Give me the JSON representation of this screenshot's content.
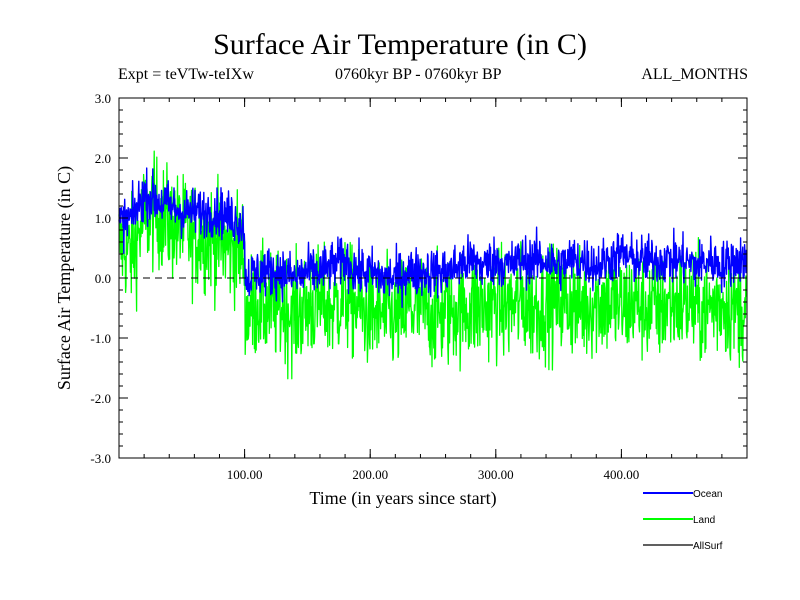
{
  "header": {
    "title": "Surface Air Temperature (in C)",
    "expt_label": "Expt = teVTw-teIXw",
    "period_label": "0760kyr BP - 0760kyr BP",
    "months_label": "ALL_MONTHS"
  },
  "chart_data": {
    "type": "line",
    "title": "Surface Air Temperature (in C)",
    "xlabel": "Time (in years since start)",
    "ylabel": "Surface Air Temperature (in C)",
    "xlim": [
      0,
      500
    ],
    "ylim": [
      -3.0,
      3.0
    ],
    "x_ticks": [
      100,
      200,
      300,
      400
    ],
    "x_tick_labels": [
      "100.00",
      "200.00",
      "300.00",
      "400.00"
    ],
    "y_ticks": [
      3.0,
      2.0,
      1.0,
      0.0,
      -1.0,
      -2.0,
      -3.0
    ],
    "y_tick_labels": [
      "3.0",
      "2.0",
      "1.0",
      "0.0",
      "-1.0",
      "-2.0",
      "-3.0"
    ],
    "zero_line": true,
    "legend_position": "bottom-right",
    "series": [
      {
        "name": "Land",
        "color": "#00ff00",
        "x": [
          0,
          10,
          20,
          30,
          40,
          50,
          60,
          70,
          80,
          90,
          99,
          101,
          110,
          120,
          130,
          140,
          150,
          160,
          170,
          180,
          190,
          200,
          210,
          220,
          230,
          240,
          250,
          260,
          270,
          280,
          290,
          300,
          310,
          320,
          330,
          340,
          350,
          360,
          370,
          380,
          390,
          400,
          410,
          420,
          430,
          440,
          450,
          460,
          470,
          480,
          490,
          499
        ],
        "values": [
          0.6,
          0.4,
          1.0,
          1.1,
          0.9,
          0.8,
          0.7,
          0.7,
          0.6,
          0.5,
          0.5,
          -0.6,
          -0.4,
          -0.5,
          -0.5,
          -0.6,
          -0.5,
          -0.4,
          -0.5,
          -0.3,
          -0.5,
          -0.6,
          -0.6,
          -0.7,
          -0.5,
          -0.5,
          -0.6,
          -0.6,
          -0.5,
          -0.5,
          -0.5,
          -0.4,
          -0.5,
          -0.4,
          -0.5,
          -0.4,
          -0.4,
          -0.4,
          -0.5,
          -0.4,
          -0.4,
          -0.5,
          -0.4,
          -0.5,
          -0.5,
          -0.4,
          -0.4,
          -0.5,
          -0.5,
          -0.4,
          -0.5,
          -0.5
        ]
      },
      {
        "name": "Ocean",
        "color": "#0000ff",
        "x": [
          0,
          10,
          20,
          30,
          40,
          50,
          60,
          70,
          80,
          90,
          99,
          101,
          110,
          120,
          130,
          140,
          150,
          160,
          170,
          180,
          190,
          200,
          210,
          220,
          230,
          240,
          250,
          260,
          270,
          280,
          290,
          300,
          310,
          320,
          330,
          340,
          350,
          360,
          370,
          380,
          390,
          400,
          410,
          420,
          430,
          440,
          450,
          460,
          470,
          480,
          490,
          499
        ],
        "values": [
          0.9,
          1.0,
          1.4,
          1.3,
          1.2,
          1.1,
          1.1,
          1.1,
          1.1,
          1.0,
          0.9,
          0.0,
          0.1,
          0.1,
          0.1,
          0.0,
          0.1,
          0.1,
          0.2,
          0.3,
          0.1,
          0.1,
          0.0,
          0.0,
          0.1,
          0.1,
          0.1,
          0.1,
          0.2,
          0.3,
          0.2,
          0.3,
          0.2,
          0.3,
          0.3,
          0.3,
          0.2,
          0.3,
          0.3,
          0.2,
          0.3,
          0.4,
          0.3,
          0.3,
          0.3,
          0.3,
          0.3,
          0.2,
          0.3,
          0.2,
          0.3,
          0.3
        ]
      },
      {
        "name": "AllSurf",
        "color": "#000000",
        "x": [],
        "values": []
      }
    ]
  }
}
